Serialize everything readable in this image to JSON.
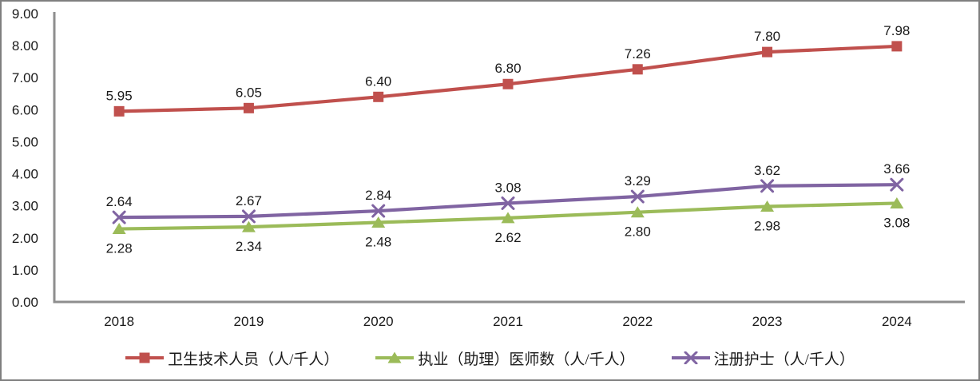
{
  "chart_data": {
    "type": "line",
    "title": "",
    "xlabel": "",
    "ylabel": "",
    "categories": [
      "2018",
      "2019",
      "2020",
      "2021",
      "2022",
      "2023",
      "2024"
    ],
    "y_ticks": [
      "0.00",
      "1.00",
      "2.00",
      "3.00",
      "4.00",
      "5.00",
      "6.00",
      "7.00",
      "8.00",
      "9.00"
    ],
    "ylim": [
      0,
      9
    ],
    "grid": false,
    "legend_position": "bottom",
    "axis_color": "#8e8e8e",
    "label_color": "#1a1a1a",
    "series": [
      {
        "name": "卫生技术人员（人/千人）",
        "color": "#C0504D",
        "marker": "square",
        "values": [
          5.95,
          6.05,
          6.4,
          6.8,
          7.26,
          7.8,
          7.98
        ],
        "label_position": "above"
      },
      {
        "name": "执业（助理）医师数（人/千人）",
        "color": "#9BBB59",
        "marker": "triangle",
        "values": [
          2.28,
          2.34,
          2.48,
          2.62,
          2.8,
          2.98,
          3.08
        ],
        "label_position": "below"
      },
      {
        "name": "注册护士（人/千人）",
        "color": "#8064A2",
        "marker": "x",
        "values": [
          2.64,
          2.67,
          2.84,
          3.08,
          3.29,
          3.62,
          3.66
        ],
        "label_position": "above"
      }
    ]
  }
}
